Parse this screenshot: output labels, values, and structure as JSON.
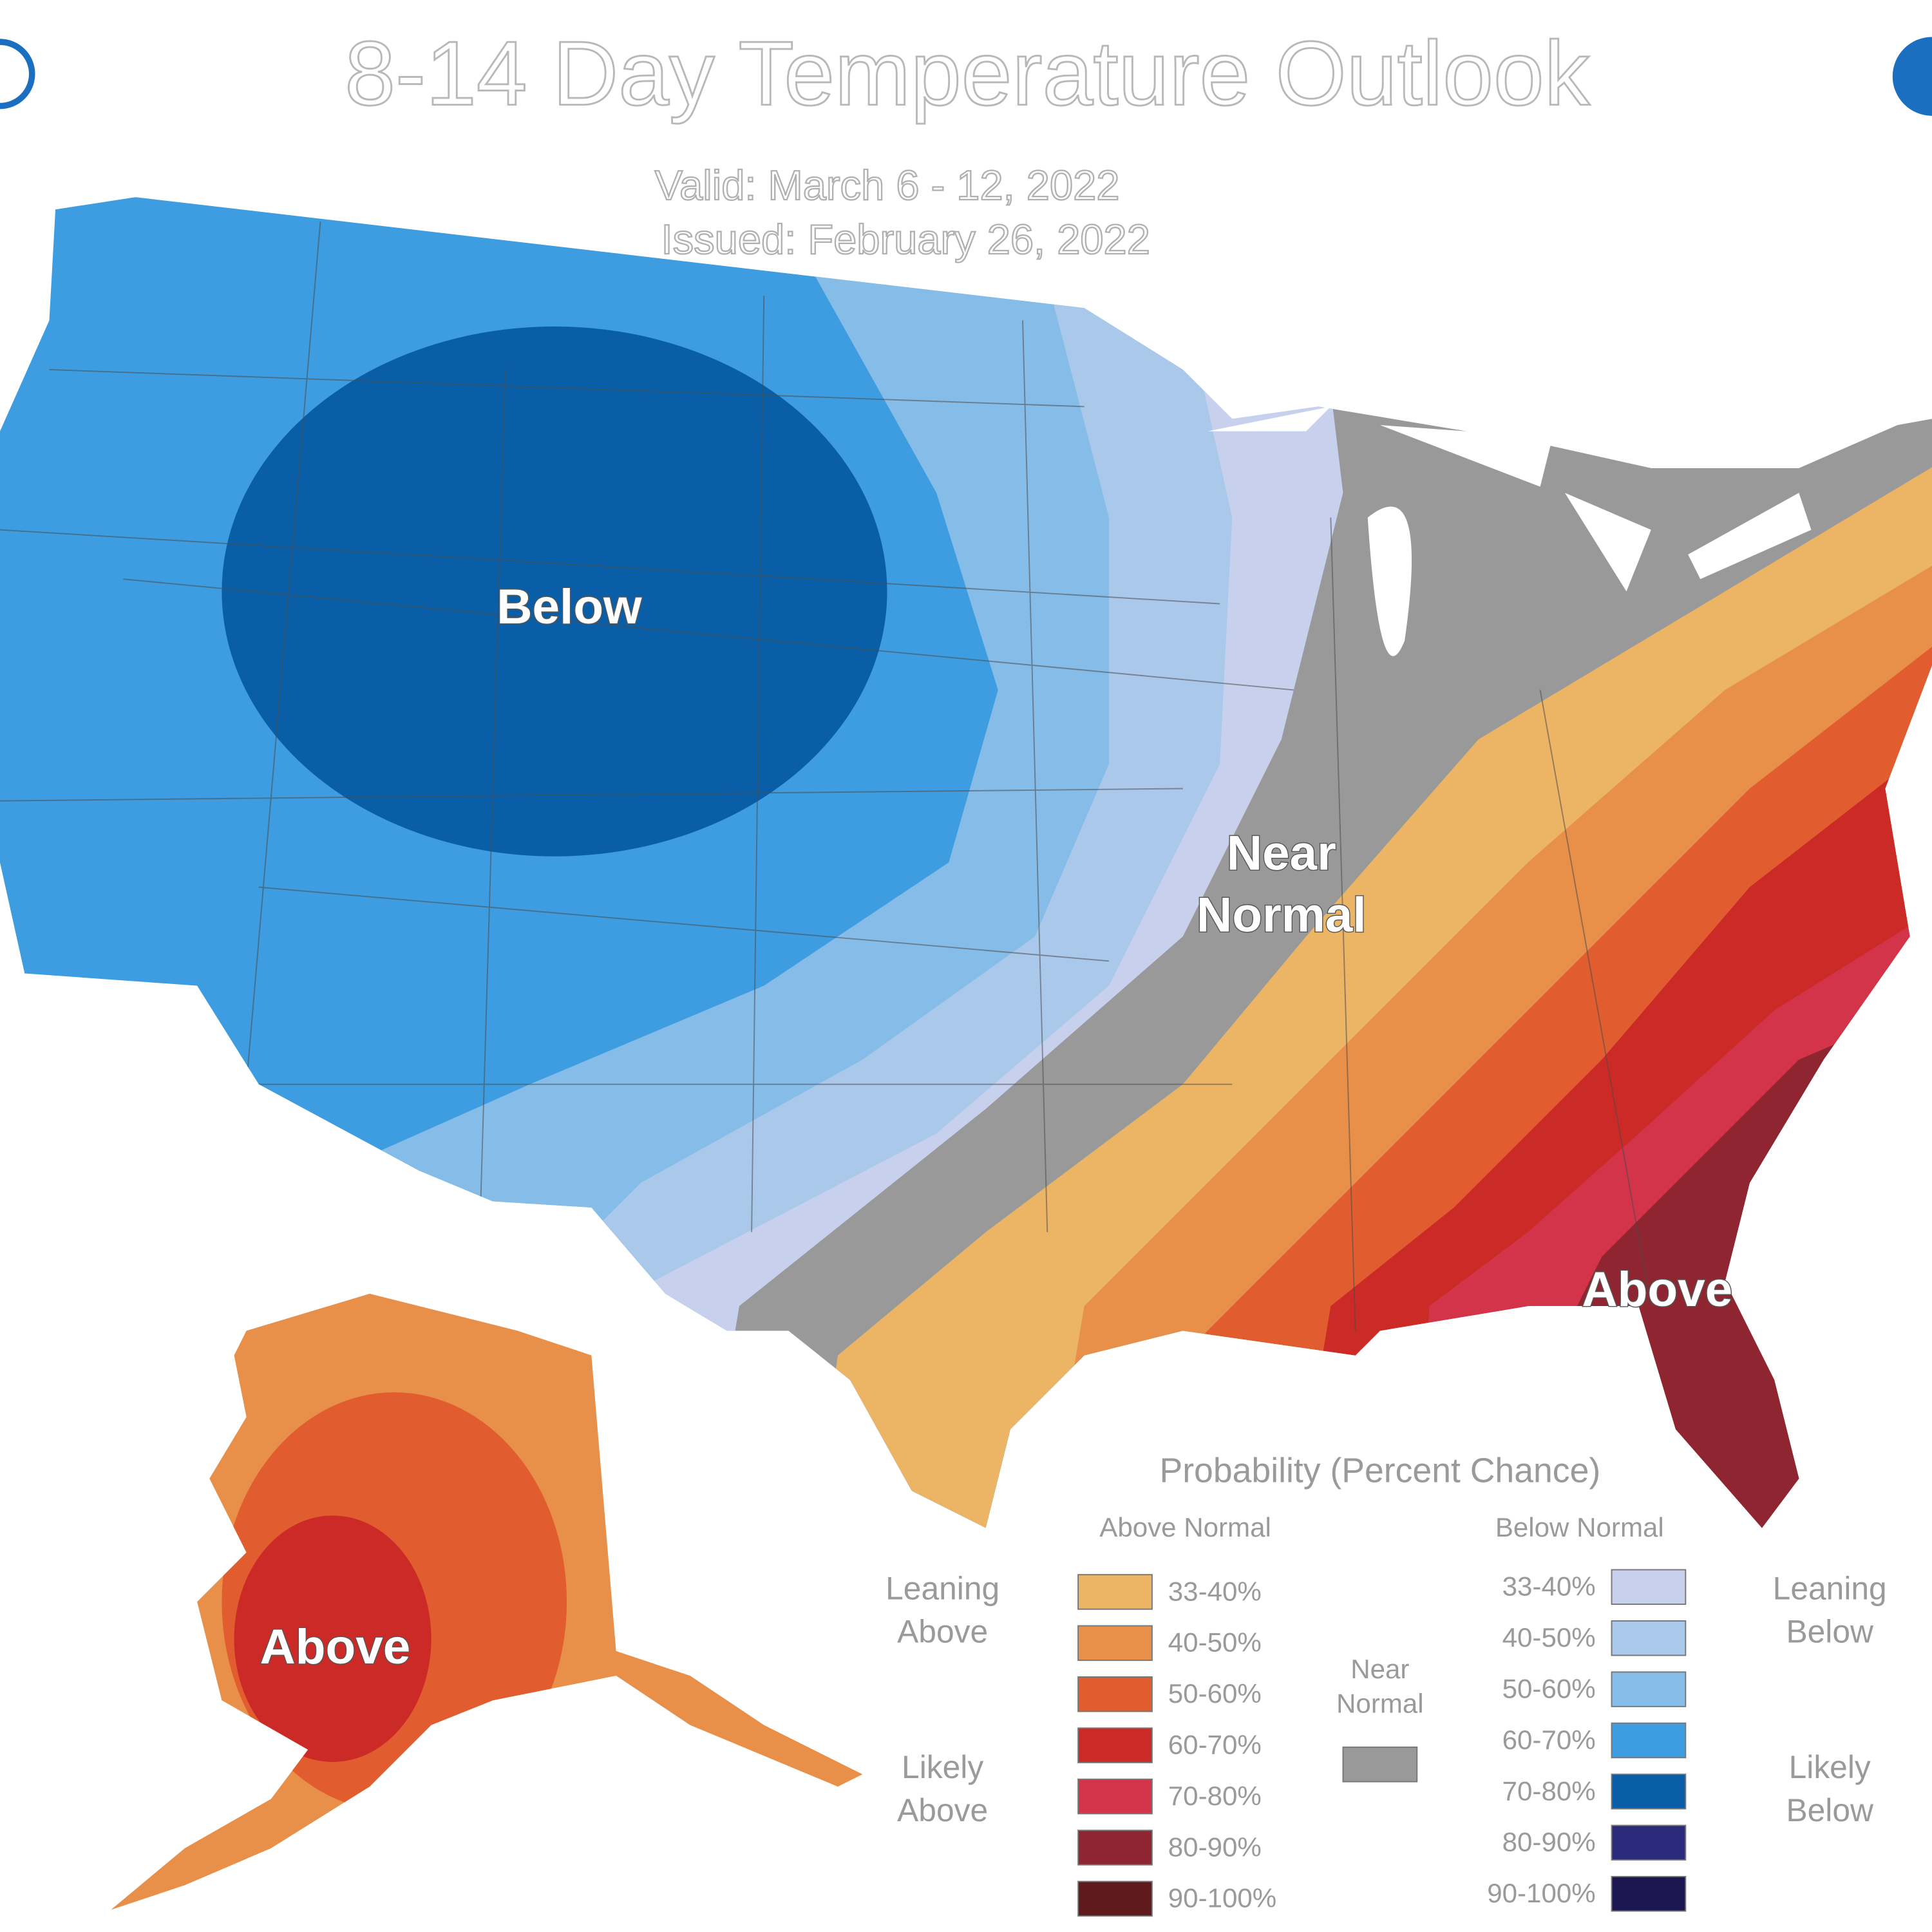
{
  "header": {
    "title": "8-14 Day Temperature Outlook",
    "valid": "Valid:  March 6 - 12, 2022",
    "issued": "Issued:  February 26, 2022"
  },
  "map_labels": {
    "below": "Below",
    "near_normal": [
      "Near",
      "Normal"
    ],
    "above_conus": "Above",
    "above_alaska": "Above"
  },
  "legend": {
    "title": "Probability (Percent Chance)",
    "above_header": "Above Normal",
    "below_header": "Below Normal",
    "leaning_above": [
      "Leaning",
      "Above"
    ],
    "likely_above": [
      "Likely",
      "Above"
    ],
    "near_normal": [
      "Near",
      "Normal"
    ],
    "near_normal_color": "#999999",
    "leaning_below": [
      "Leaning",
      "Below"
    ],
    "likely_below": [
      "Likely",
      "Below"
    ],
    "above": [
      {
        "label": "33-40%",
        "color": "#ecb465"
      },
      {
        "label": "40-50%",
        "color": "#e8904a"
      },
      {
        "label": "50-60%",
        "color": "#e15d30"
      },
      {
        "label": "60-70%",
        "color": "#cc2a27"
      },
      {
        "label": "70-80%",
        "color": "#d3344a"
      },
      {
        "label": "80-90%",
        "color": "#8e2530"
      },
      {
        "label": "90-100%",
        "color": "#5e1a1d"
      }
    ],
    "below": [
      {
        "label": "33-40%",
        "color": "#c7d1ee"
      },
      {
        "label": "40-50%",
        "color": "#a9c8ea"
      },
      {
        "label": "50-60%",
        "color": "#86bce8"
      },
      {
        "label": "60-70%",
        "color": "#3d9de0"
      },
      {
        "label": "70-80%",
        "color": "#0a5ea8"
      },
      {
        "label": "80-90%",
        "color": "#2b2a7a"
      },
      {
        "label": "90-100%",
        "color": "#1b1650"
      }
    ]
  }
}
